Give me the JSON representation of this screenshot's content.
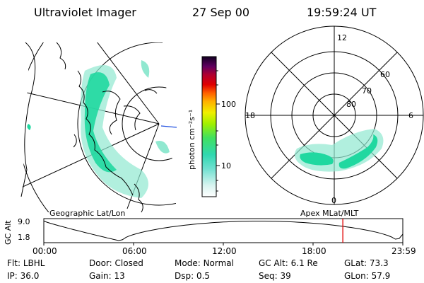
{
  "header": {
    "instrument": "Ultraviolet Imager",
    "date": "27 Sep 00",
    "time": "19:59:24 UT"
  },
  "colorbar": {
    "unit_label": "photon cm⁻²s⁻¹",
    "ticks": [
      {
        "value": 100,
        "label": "100"
      },
      {
        "value": 10,
        "label": "10"
      }
    ]
  },
  "polar": {
    "mlt_labels": {
      "top": "12",
      "left": "18",
      "right": "6",
      "bottom": "0"
    },
    "lat_labels": [
      "60",
      "70",
      "80"
    ]
  },
  "timeline": {
    "left_title": "Geographic Lat/Lon",
    "right_title": "Apex MLat/MLT",
    "axis_title": "GC Alt",
    "y_ticks": [
      "9.0",
      "1.8"
    ],
    "x_ticks": [
      "00:00",
      "06:00",
      "12:00",
      "18:00",
      "23:59"
    ],
    "current_time_hours": 19.99
  },
  "footer": {
    "row1": [
      {
        "label": "Flt:",
        "value": "LBHL"
      },
      {
        "label": "Door:",
        "value": "Closed"
      },
      {
        "label": "Mode:",
        "value": "Normal"
      },
      {
        "label": "GC Alt:",
        "value": "6.1 Re"
      },
      {
        "label": "GLat:",
        "value": "73.3"
      }
    ],
    "row2": [
      {
        "label": "IP:",
        "value": "36.0"
      },
      {
        "label": "Gain:",
        "value": "13"
      },
      {
        "label": "Dsp:",
        "value": "0.5"
      },
      {
        "label": "Seq:",
        "value": "39"
      },
      {
        "label": "GLon:",
        "value": "57.9"
      }
    ]
  },
  "colors": {
    "aurora_bright": "#20d8a0",
    "aurora_dim": "#90e8d0",
    "marker": "#e00000"
  }
}
